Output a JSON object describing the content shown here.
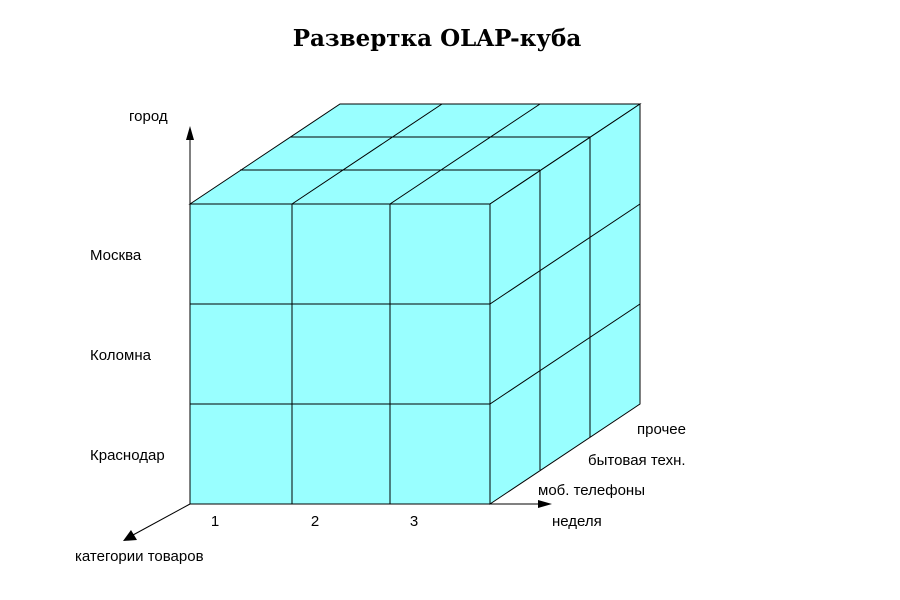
{
  "title": "Развертка OLAP-куба",
  "colors": {
    "cube_fill": "#99ffff",
    "stroke": "#000000",
    "background": "#ffffff"
  },
  "axes": {
    "vertical": "город",
    "horizontal": "неделя",
    "depth": "категории товаров"
  },
  "cities": [
    "Москва",
    "Коломна",
    "Краснодар"
  ],
  "weeks": [
    "1",
    "2",
    "3"
  ],
  "categories": [
    "моб. телефоны",
    "бытовая техн.",
    "прочее"
  ]
}
